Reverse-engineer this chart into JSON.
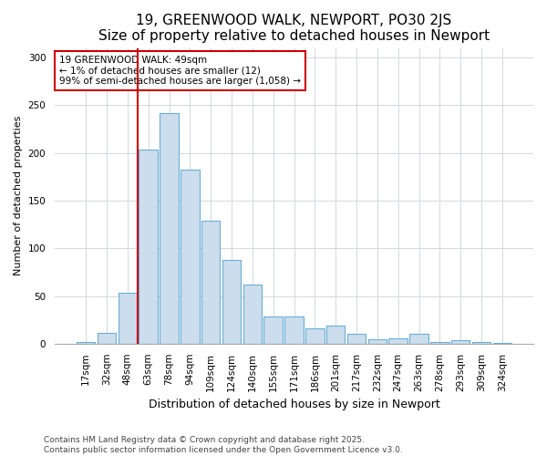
{
  "title": "19, GREENWOOD WALK, NEWPORT, PO30 2JS",
  "subtitle": "Size of property relative to detached houses in Newport",
  "xlabel": "Distribution of detached houses by size in Newport",
  "ylabel": "Number of detached properties",
  "bar_labels": [
    "17sqm",
    "32sqm",
    "48sqm",
    "63sqm",
    "78sqm",
    "94sqm",
    "109sqm",
    "124sqm",
    "140sqm",
    "155sqm",
    "171sqm",
    "186sqm",
    "201sqm",
    "217sqm",
    "232sqm",
    "247sqm",
    "263sqm",
    "278sqm",
    "293sqm",
    "309sqm",
    "324sqm"
  ],
  "bar_values": [
    2,
    11,
    53,
    204,
    242,
    183,
    129,
    88,
    62,
    29,
    29,
    16,
    19,
    10,
    5,
    6,
    10,
    2,
    4,
    2,
    1
  ],
  "bar_color": "#ccdded",
  "bar_edge_color": "#6aafd6",
  "vline_x_index": 2,
  "annotation_line1": "19 GREENWOOD WALK: 49sqm",
  "annotation_line2": "← 1% of detached houses are smaller (12)",
  "annotation_line3": "99% of semi-detached houses are larger (1,058) →",
  "annotation_box_facecolor": "#ffffff",
  "annotation_box_edgecolor": "#cc0000",
  "vline_color": "#cc0000",
  "ylim": [
    0,
    310
  ],
  "yticks": [
    0,
    50,
    100,
    150,
    200,
    250,
    300
  ],
  "bg_color": "#ffffff",
  "plot_bg_color": "#ffffff",
  "grid_color": "#d0d8e0",
  "title_fontsize": 11,
  "subtitle_fontsize": 9.5,
  "xlabel_fontsize": 9,
  "ylabel_fontsize": 8,
  "tick_fontsize": 7.5,
  "annotation_fontsize": 7.5,
  "footer_line1": "Contains HM Land Registry data © Crown copyright and database right 2025.",
  "footer_line2": "Contains public sector information licensed under the Open Government Licence v3.0.",
  "footer_fontsize": 6.5
}
